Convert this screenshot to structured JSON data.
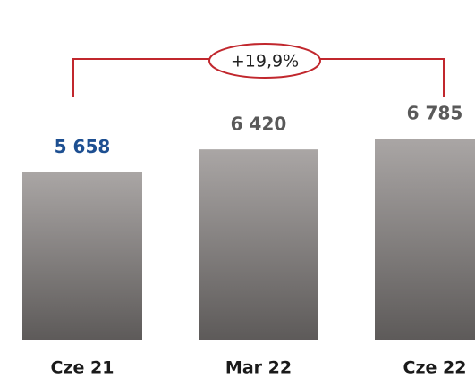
{
  "chart_data": {
    "type": "bar",
    "categories": [
      "Cze 21",
      "Mar 22",
      "Cze 22"
    ],
    "values": [
      5658,
      6420,
      6785
    ],
    "value_labels": [
      "5 658",
      "6 420",
      "6 785"
    ],
    "label_colors": [
      "#1d4f91",
      "#595959",
      "#595959"
    ],
    "color": [
      "#aaa6a5",
      "#5d5a59"
    ],
    "annotation": "+19,9%",
    "annotation_color": "#c1272d"
  }
}
